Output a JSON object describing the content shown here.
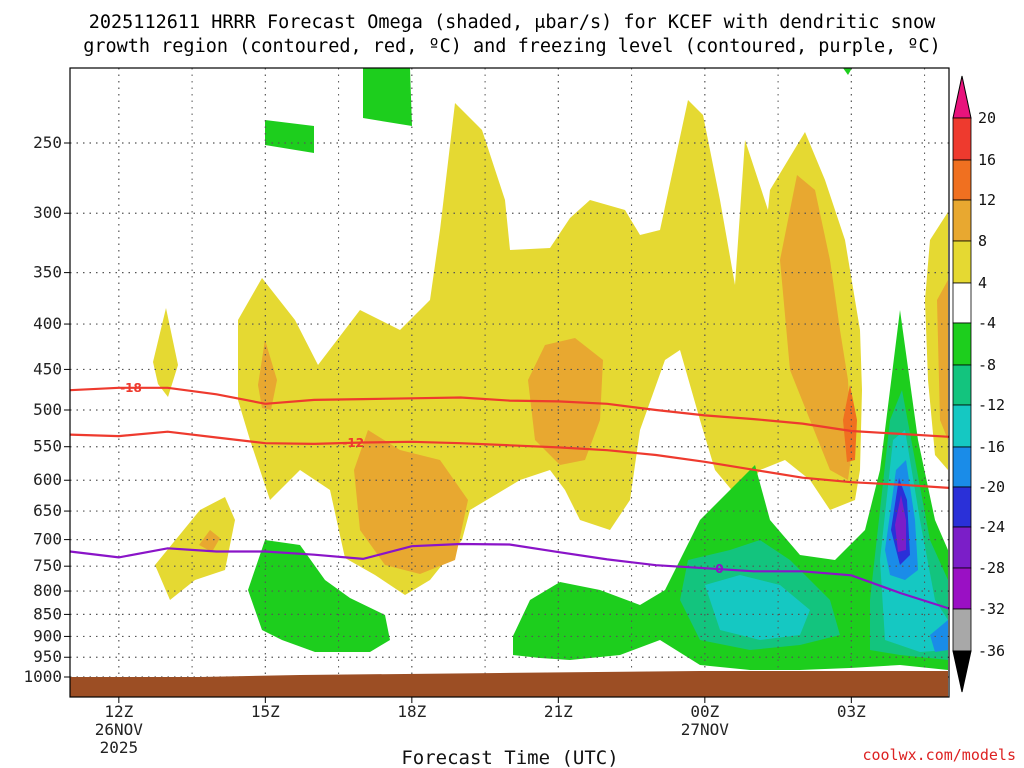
{
  "title_line1": "2025112611 HRRR Forecast Omega (shaded, μbar/s) for KCEF with dendritic snow",
  "title_line2": "growth region (contoured, red, ºC) and freezing level (contoured, purple, ºC)",
  "credit": "coolwx.com/models",
  "colors": {
    "terrain": "#9c4e24",
    "dgz_contour": "#ee3a2e",
    "freezing_contour": "#8a14c8",
    "grid": "#555555"
  },
  "chart_data": {
    "type": "heatmap",
    "title": "2025112611 HRRR Forecast Omega (shaded, μbar/s) for KCEF with dendritic snow growth region (contoured, red, ºC) and freezing level (contoured, purple, ºC)",
    "xlabel": "Forecast Time (UTC)",
    "ylabel": "",
    "x_range_hours": [
      11,
      29
    ],
    "y_range_hpa": [
      1000,
      200
    ],
    "y_scale": "log-pressure",
    "grid": true,
    "x_ticks": [
      {
        "hour": 12,
        "label": "12Z",
        "sub1": "26NOV",
        "sub2": "2025"
      },
      {
        "hour": 15,
        "label": "15Z",
        "sub1": "",
        "sub2": ""
      },
      {
        "hour": 18,
        "label": "18Z",
        "sub1": "",
        "sub2": ""
      },
      {
        "hour": 21,
        "label": "21Z",
        "sub1": "",
        "sub2": ""
      },
      {
        "hour": 24,
        "label": "00Z",
        "sub1": "27NOV",
        "sub2": ""
      },
      {
        "hour": 27,
        "label": "03Z",
        "sub1": "",
        "sub2": ""
      }
    ],
    "y_ticks": [
      "250",
      "300",
      "350",
      "400",
      "450",
      "500",
      "550",
      "600",
      "650",
      "700",
      "750",
      "800",
      "850",
      "900",
      "950",
      "1000"
    ],
    "colorbar": {
      "levels": [
        "20",
        "16",
        "12",
        "8",
        "4",
        "-4",
        "-8",
        "-12",
        "-16",
        "-20",
        "-24",
        "-28",
        "-32",
        "-36"
      ],
      "colors": [
        "#e8137c",
        "#ee3a2e",
        "#f07020",
        "#e8a830",
        "#e5d932",
        "#ffffff",
        "#1dce1d",
        "#13c47e",
        "#15c8c2",
        "#1a8ce8",
        "#2a30d8",
        "#7b1ec8",
        "#9a10c4",
        "#a8a8a8",
        "#000000"
      ]
    },
    "contours": [
      {
        "name": "dgz -18C",
        "label": "-18",
        "color": "#ee3a2e",
        "points": [
          [
            11,
            475
          ],
          [
            12,
            472
          ],
          [
            13,
            472
          ],
          [
            14,
            480
          ],
          [
            15,
            492
          ],
          [
            16,
            487
          ],
          [
            17,
            486
          ],
          [
            18,
            485
          ],
          [
            19,
            484
          ],
          [
            20,
            488
          ],
          [
            21,
            489
          ],
          [
            22,
            492
          ],
          [
            23,
            500
          ],
          [
            24,
            507
          ],
          [
            25,
            512
          ],
          [
            26,
            518
          ],
          [
            27,
            528
          ],
          [
            28,
            532
          ],
          [
            29,
            536
          ]
        ]
      },
      {
        "name": "dgz -12C",
        "label": "-12",
        "color": "#ee3a2e",
        "points": [
          [
            11,
            533
          ],
          [
            12,
            535
          ],
          [
            13,
            529
          ],
          [
            14,
            537
          ],
          [
            15,
            545
          ],
          [
            16,
            546
          ],
          [
            17,
            544
          ],
          [
            18,
            543
          ],
          [
            19,
            545
          ],
          [
            20,
            548
          ],
          [
            21,
            551
          ],
          [
            22,
            555
          ],
          [
            23,
            562
          ],
          [
            24,
            572
          ],
          [
            25,
            584
          ],
          [
            26,
            596
          ],
          [
            27,
            603
          ],
          [
            28,
            607
          ],
          [
            29,
            612
          ]
        ]
      },
      {
        "name": "freezing level 0C",
        "label": "0",
        "color": "#8a14c8",
        "points": [
          [
            11,
            722
          ],
          [
            12,
            733
          ],
          [
            13,
            716
          ],
          [
            14,
            722
          ],
          [
            15,
            722
          ],
          [
            16,
            728
          ],
          [
            17,
            736
          ],
          [
            18,
            712
          ],
          [
            19,
            708
          ],
          [
            20,
            709
          ],
          [
            21,
            723
          ],
          [
            22,
            737
          ],
          [
            23,
            748
          ],
          [
            24,
            754
          ],
          [
            25,
            760
          ],
          [
            26,
            760
          ],
          [
            27,
            768
          ],
          [
            28,
            804
          ],
          [
            29,
            837
          ]
        ]
      }
    ],
    "omega_regions": [
      {
        "value_range": "4 to 8",
        "color": "#e5d932",
        "description": "broad upward motion areas"
      },
      {
        "value_range": "8 to 12",
        "color": "#e8a830",
        "description": "stronger ascent cores"
      },
      {
        "value_range": "12 to 16",
        "color": "#f07020",
        "description": "strongest ascent core near 02Z"
      },
      {
        "value_range": "-4 to -8",
        "color": "#1dce1d",
        "description": "weak descent"
      },
      {
        "value_range": "-8 to -16",
        "color": "#13c47e",
        "description": "moderate descent"
      },
      {
        "value_range": "-20 to -28",
        "color": "#7b1ec8",
        "description": "strong descent core near 04Z"
      }
    ],
    "surface_pressure_hpa": 1000
  }
}
